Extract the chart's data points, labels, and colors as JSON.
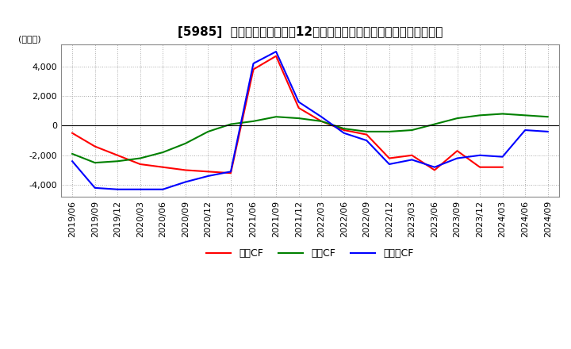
{
  "title": "[5985]  キャッシュフローの12か月移動合計の対前年同期増減額の推移",
  "ylabel": "(百万円)",
  "ylim": [
    -4800,
    5500
  ],
  "yticks": [
    -4000,
    -2000,
    0,
    2000,
    4000
  ],
  "x_labels": [
    "2019/06",
    "2019/09",
    "2019/12",
    "2020/03",
    "2020/06",
    "2020/09",
    "2020/12",
    "2021/03",
    "2021/06",
    "2021/09",
    "2021/12",
    "2022/03",
    "2022/06",
    "2022/09",
    "2022/12",
    "2023/03",
    "2023/06",
    "2023/09",
    "2023/12",
    "2024/03",
    "2024/06",
    "2024/09"
  ],
  "operating_cf": [
    -500,
    -1400,
    -2000,
    -2600,
    -2800,
    -3000,
    -3100,
    -3200,
    3800,
    4700,
    1200,
    300,
    -300,
    -600,
    -2200,
    -2000,
    -3000,
    -1700,
    -2800,
    -2800,
    null,
    null
  ],
  "investing_cf": [
    -1900,
    -2500,
    -2400,
    -2200,
    -1800,
    -1200,
    -400,
    100,
    300,
    600,
    500,
    300,
    -200,
    -400,
    -400,
    -300,
    100,
    500,
    700,
    800,
    700,
    600
  ],
  "free_cf": [
    -2400,
    -4200,
    -4300,
    -4300,
    -4300,
    -3800,
    -3400,
    -3100,
    4200,
    5000,
    1600,
    600,
    -500,
    -1000,
    -2600,
    -2300,
    -2800,
    -2200,
    -2000,
    -2100,
    -300,
    -400
  ],
  "colors": {
    "operating": "#FF0000",
    "investing": "#008000",
    "free": "#0000FF"
  },
  "legend_labels": {
    "operating": "営業CF",
    "investing": "投資CF",
    "free": "フリーCF"
  },
  "background_color": "#FFFFFF",
  "grid_color": "#AAAAAA",
  "title_fontsize": 11,
  "tick_fontsize": 8,
  "ylabel_fontsize": 8,
  "legend_fontsize": 9
}
